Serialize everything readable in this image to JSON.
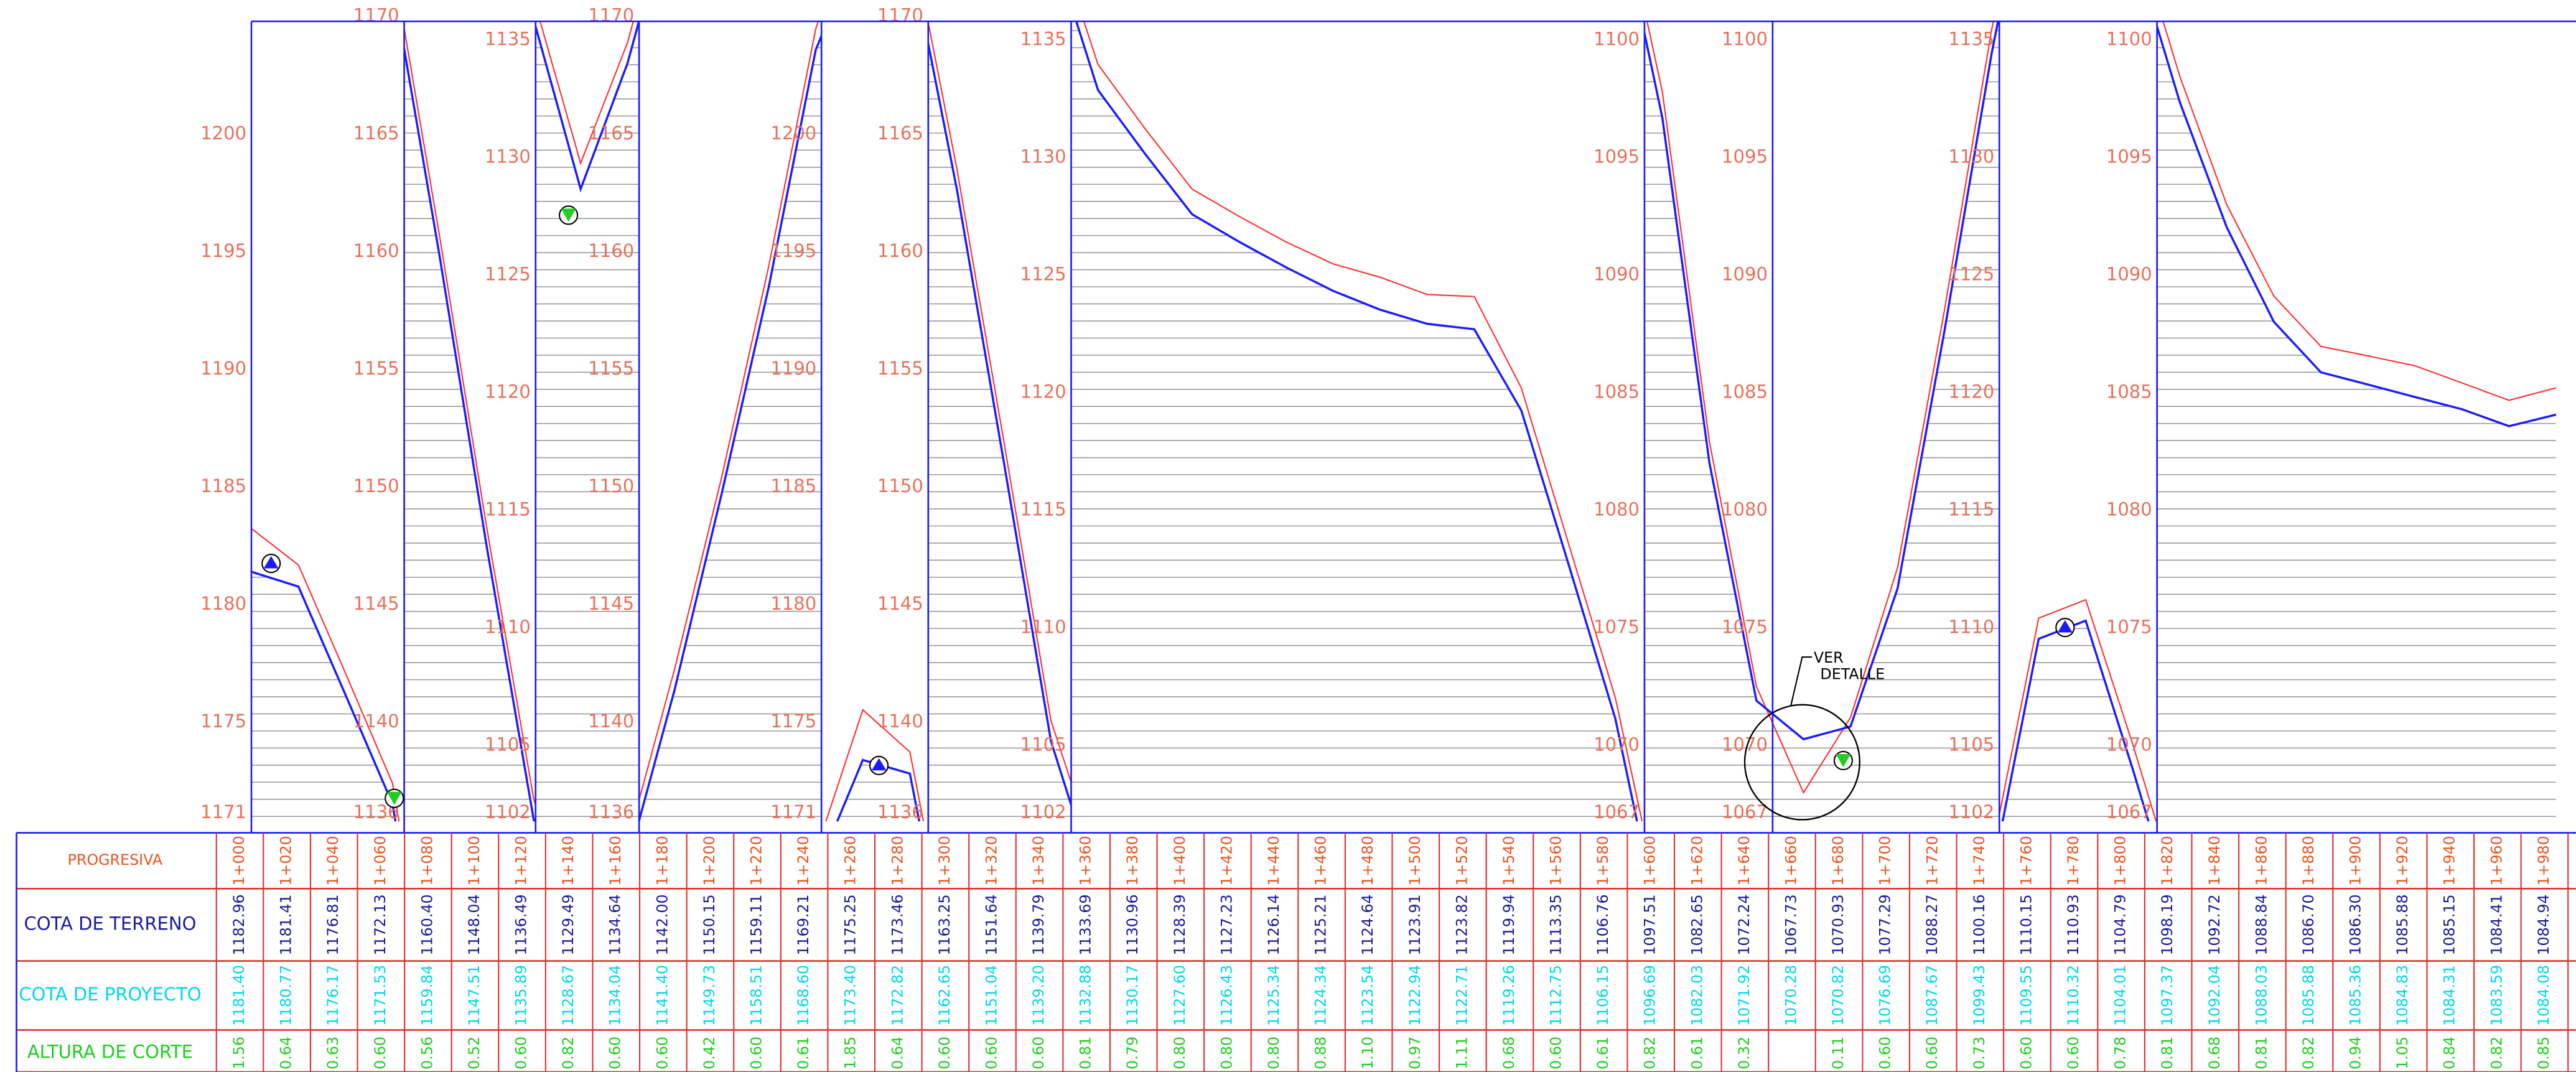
{
  "profile": {
    "panels": [
      {
        "ylim": [
          1171,
          1204.8
        ],
        "yticks": [
          1171,
          1175,
          1180,
          1185,
          1190,
          1195,
          1200
        ]
      },
      {
        "ylim": [
          1136,
          1169.8
        ],
        "yticks": [
          1136,
          1140,
          1145,
          1150,
          1155,
          1160,
          1165,
          1170
        ]
      },
      {
        "ylim": [
          1102,
          1135.8
        ],
        "yticks": [
          1102,
          1105,
          1110,
          1115,
          1120,
          1125,
          1130,
          1135
        ]
      },
      {
        "ylim": [
          1136,
          1169.8
        ],
        "yticks": [
          1136,
          1140,
          1145,
          1150,
          1155,
          1160,
          1165,
          1170
        ]
      },
      {
        "ylim": [
          1171,
          1204.8
        ],
        "yticks": [
          1171,
          1175,
          1180,
          1185,
          1190,
          1195,
          1200
        ]
      },
      {
        "ylim": [
          1136,
          1169.8
        ],
        "yticks": [
          1136,
          1140,
          1145,
          1150,
          1155,
          1160,
          1165,
          1170
        ]
      },
      {
        "ylim": [
          1102,
          1135.8
        ],
        "yticks": [
          1102,
          1105,
          1110,
          1115,
          1120,
          1125,
          1130,
          1135
        ]
      },
      {
        "ylim": [
          1067,
          1100.8
        ],
        "yticks": [
          1067,
          1070,
          1075,
          1080,
          1085,
          1090,
          1095,
          1100
        ]
      },
      {
        "ylim": [
          1067,
          1100.8
        ],
        "yticks": [
          1067,
          1070,
          1075,
          1080,
          1085,
          1090,
          1095,
          1100
        ]
      },
      {
        "ylim": [
          1102,
          1135.8
        ],
        "yticks": [
          1102,
          1105,
          1110,
          1115,
          1120,
          1125,
          1130,
          1135
        ]
      },
      {
        "ylim": [
          1067,
          1100.8
        ],
        "yticks": [
          1067,
          1070,
          1075,
          1080,
          1085,
          1090,
          1095,
          1100
        ]
      }
    ],
    "annotation": [
      "VER",
      "DETALLE"
    ]
  },
  "table": {
    "headers": [
      "PROGRESIVA",
      "COTA DE TERRENO",
      "COTA DE PROYECTO",
      "ALTURA DE CORTE"
    ],
    "stations": [
      "1+000",
      "1+020",
      "1+040",
      "1+060",
      "1+080",
      "1+100",
      "1+120",
      "1+140",
      "1+160",
      "1+180",
      "1+200",
      "1+220",
      "1+240",
      "1+260",
      "1+280",
      "1+300",
      "1+320",
      "1+340",
      "1+360",
      "1+380",
      "1+400",
      "1+420",
      "1+440",
      "1+460",
      "1+480",
      "1+500",
      "1+520",
      "1+540",
      "1+560",
      "1+580",
      "1+600",
      "1+620",
      "1+640",
      "1+660",
      "1+680",
      "1+700",
      "1+720",
      "1+740",
      "1+760",
      "1+780",
      "1+800",
      "1+820",
      "1+840",
      "1+860",
      "1+880",
      "1+900",
      "1+920",
      "1+940",
      "1+960",
      "1+980"
    ],
    "terreno": [
      1182.96,
      1181.41,
      1176.81,
      1172.13,
      1160.4,
      1148.04,
      1136.49,
      1129.49,
      1134.64,
      1142.0,
      1150.15,
      1159.11,
      1169.21,
      1175.25,
      1173.46,
      1163.25,
      1151.64,
      1139.79,
      1133.69,
      1130.96,
      1128.39,
      1127.23,
      1126.14,
      1125.21,
      1124.64,
      1123.91,
      1123.82,
      1119.94,
      1113.35,
      1106.76,
      1097.51,
      1082.65,
      1072.24,
      1067.73,
      1070.93,
      1077.29,
      1088.27,
      1100.16,
      1110.15,
      1110.93,
      1104.79,
      1098.19,
      1092.72,
      1088.84,
      1086.7,
      1086.3,
      1085.88,
      1085.15,
      1084.41,
      1084.94
    ],
    "terreno_labels": [
      "1182.96",
      "1181.41",
      "1176.81",
      "1172.13",
      "1160.40",
      "1148.04",
      "1136.49",
      "1129.49",
      "1134.64",
      "1142.00",
      "1150.15",
      "1159.11",
      "1169.21",
      "1175.25",
      "1173.46",
      "1163.25",
      "1151.64",
      "1139.79",
      "1133.69",
      "1130.96",
      "1128.39",
      "1127.23",
      "1126.14",
      "1125.21",
      "1124.64",
      "1123.91",
      "1123.82",
      "1119.94",
      "1113.35",
      "1106.76",
      "1097.51",
      "1082.65",
      "1072.24",
      "1067.73",
      "1070.93",
      "1077.29",
      "1088.27",
      "1100.16",
      "1110.15",
      "1110.93",
      "1104.79",
      "1098.19",
      "1092.72",
      "1088.84",
      "1086.70",
      "1086.30",
      "1085.88",
      "1085.15",
      "1084.41",
      "1084.94"
    ],
    "proyecto": [
      1181.4,
      1180.77,
      1176.17,
      1171.53,
      1159.84,
      1147.51,
      1135.89,
      1128.67,
      1134.04,
      1141.4,
      1149.73,
      1158.51,
      1168.6,
      1173.4,
      1172.82,
      1162.65,
      1151.04,
      1139.2,
      1132.88,
      1130.17,
      1127.6,
      1126.43,
      1125.34,
      1124.34,
      1123.54,
      1122.94,
      1122.71,
      1119.26,
      1112.75,
      1106.15,
      1096.69,
      1082.03,
      1071.92,
      1070.28,
      1070.82,
      1076.69,
      1087.67,
      1099.43,
      1109.55,
      1110.32,
      1104.01,
      1097.37,
      1092.04,
      1088.03,
      1085.88,
      1085.36,
      1084.83,
      1084.31,
      1083.59,
      1084.08
    ],
    "proyecto_labels": [
      "1181.40",
      "1180.77",
      "1176.17",
      "1171.53",
      "1159.84",
      "1147.51",
      "1135.89",
      "1128.67",
      "1134.04",
      "1141.40",
      "1149.73",
      "1158.51",
      "1168.60",
      "1173.40",
      "1172.82",
      "1162.65",
      "1151.04",
      "1139.20",
      "1132.88",
      "1130.17",
      "1127.60",
      "1126.43",
      "1125.34",
      "1124.34",
      "1123.54",
      "1122.94",
      "1122.71",
      "1119.26",
      "1112.75",
      "1106.15",
      "1096.69",
      "1082.03",
      "1071.92",
      "1070.28",
      "1070.82",
      "1076.69",
      "1087.67",
      "1099.43",
      "1109.55",
      "1110.32",
      "1104.01",
      "1097.37",
      "1092.04",
      "1088.03",
      "1085.88",
      "1085.36",
      "1084.83",
      "1084.31",
      "1083.59",
      "1084.08"
    ],
    "altura_corte": [
      1.56,
      0.64,
      0.63,
      0.6,
      0.56,
      0.52,
      0.6,
      0.82,
      0.6,
      0.6,
      0.42,
      0.6,
      0.61,
      1.85,
      0.64,
      0.6,
      0.6,
      0.6,
      0.81,
      0.79,
      0.8,
      0.8,
      0.8,
      0.88,
      1.1,
      0.97,
      1.11,
      0.68,
      0.6,
      0.61,
      0.82,
      0.61,
      0.32,
      null,
      0.11,
      0.6,
      0.6,
      0.73,
      0.6,
      0.6,
      0.78,
      0.81,
      0.68,
      0.81,
      0.82,
      0.94,
      1.05,
      0.84,
      0.82,
      0.85
    ],
    "altura_corte_labels": [
      "1.56",
      "0.64",
      "0.63",
      "0.60",
      "0.56",
      "0.52",
      "0.60",
      "0.82",
      "0.60",
      "0.60",
      "0.42",
      "0.60",
      "0.61",
      "1.85",
      "0.64",
      "0.60",
      "0.60",
      "0.60",
      "0.81",
      "0.79",
      "0.80",
      "0.80",
      "0.80",
      "0.88",
      "1.10",
      "0.97",
      "1.11",
      "0.68",
      "0.60",
      "0.61",
      "0.82",
      "0.61",
      "0.32",
      null,
      "0.11",
      "0.60",
      "0.60",
      "0.73",
      "0.60",
      "0.60",
      "0.78",
      "0.81",
      "0.68",
      "0.81",
      "0.82",
      "0.94",
      "1.05",
      "0.84",
      "0.82",
      "0.85"
    ]
  }
}
